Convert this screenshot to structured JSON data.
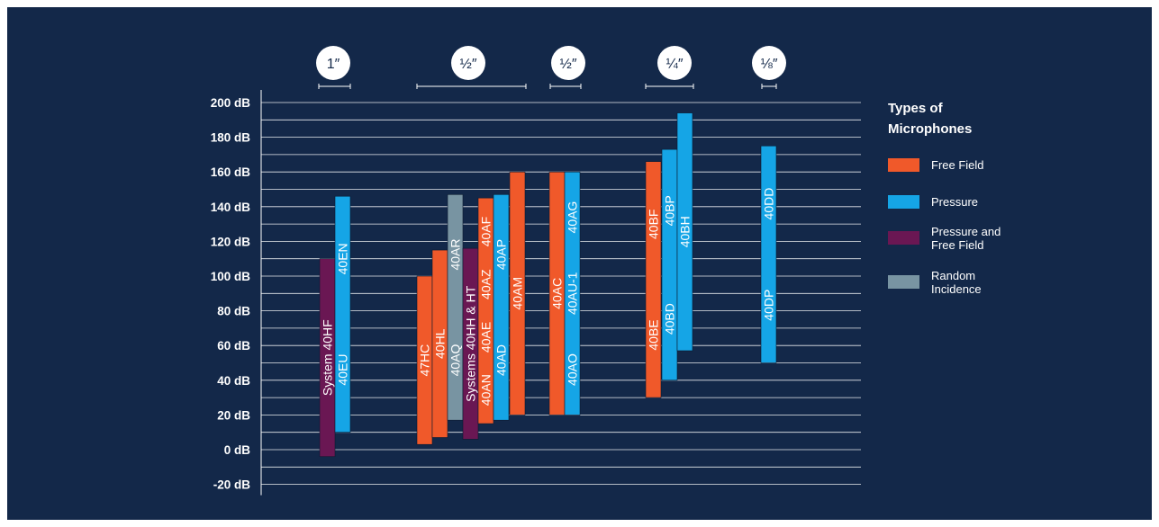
{
  "chart_data": {
    "type": "bar",
    "subtype": "floating-range",
    "title": "",
    "xlabel": "",
    "ylabel": "",
    "ylim": [
      -20,
      200
    ],
    "y_ticks": [
      "200 dB",
      "180 dB",
      "160 dB",
      "140 dB",
      "120 dB",
      "100 dB",
      "80 dB",
      "60 dB",
      "40 dB",
      "20 dB",
      "0 dB",
      "-20 dB"
    ],
    "y_tick_values": [
      200,
      180,
      160,
      140,
      120,
      100,
      80,
      60,
      40,
      20,
      0,
      -20
    ],
    "grid": true,
    "legend": {
      "title": "Types of Microphones",
      "placement": "right",
      "entries": [
        {
          "label": "Free Field",
          "color": "#f0592a"
        },
        {
          "label": "Pressure",
          "color": "#15a5e6"
        },
        {
          "label": "Pressure and Free Field",
          "color": "#6a1753"
        },
        {
          "label": "Random Incidence",
          "color": "#7894a2"
        }
      ]
    },
    "size_groups": [
      {
        "label": "1″",
        "bars": [
          0,
          1
        ]
      },
      {
        "label": "½″",
        "bars": [
          2,
          3,
          4,
          5,
          6,
          7,
          8
        ]
      },
      {
        "label": "½″",
        "bars": [
          9,
          10
        ]
      },
      {
        "label": "¼″",
        "bars": [
          11,
          12,
          13
        ]
      },
      {
        "label": "⅛″",
        "bars": [
          14
        ]
      }
    ],
    "series": [
      {
        "slot": 0,
        "type": "Pressure and Free Field",
        "min": -4,
        "max": 110,
        "labels": [
          "System 40HF"
        ]
      },
      {
        "slot": 1,
        "type": "Pressure",
        "min": 10,
        "max": 146,
        "labels": [
          "40EU",
          "40EN"
        ]
      },
      {
        "slot": 2,
        "type": "Free Field",
        "min": 3,
        "max": 100,
        "labels": [
          "47HC"
        ]
      },
      {
        "slot": 3,
        "type": "Free Field",
        "min": 7,
        "max": 115,
        "labels": [
          "40HL"
        ]
      },
      {
        "slot": 4,
        "type": "Random Incidence",
        "min": 17,
        "max": 147,
        "labels": [
          "40AQ",
          "40AR"
        ]
      },
      {
        "slot": 5,
        "type": "Pressure and Free Field",
        "min": 6,
        "max": 116,
        "labels": [
          "Systems 40HH & HT"
        ]
      },
      {
        "slot": 6,
        "type": "Free Field",
        "min": 15,
        "max": 145,
        "labels": [
          "40AN",
          "40AE",
          "40AZ",
          "40AF"
        ]
      },
      {
        "slot": 7,
        "type": "Pressure",
        "min": 17,
        "max": 147,
        "labels": [
          "40AD",
          "40AP"
        ]
      },
      {
        "slot": 8,
        "type": "Free Field",
        "min": 20,
        "max": 160,
        "labels": [
          "40AM"
        ]
      },
      {
        "slot": 9,
        "type": "Free Field",
        "min": 20,
        "max": 160,
        "labels": [
          "40AC"
        ]
      },
      {
        "slot": 10,
        "type": "Pressure",
        "min": 20,
        "max": 160,
        "labels": [
          "40AO",
          "40AU-1",
          "40AG"
        ]
      },
      {
        "slot": 11,
        "type": "Free Field",
        "min": 30,
        "max": 166,
        "labels": [
          "40BE",
          "40BF"
        ]
      },
      {
        "slot": 12,
        "type": "Pressure",
        "min": 40,
        "max": 173,
        "labels": [
          "40BD",
          "40BP"
        ]
      },
      {
        "slot": 13,
        "type": "Pressure",
        "min": 57,
        "max": 194,
        "labels": [
          "40BH"
        ]
      },
      {
        "slot": 14,
        "type": "Pressure",
        "min": 50,
        "max": 175,
        "labels": [
          "40DP",
          "40DD"
        ]
      }
    ]
  }
}
